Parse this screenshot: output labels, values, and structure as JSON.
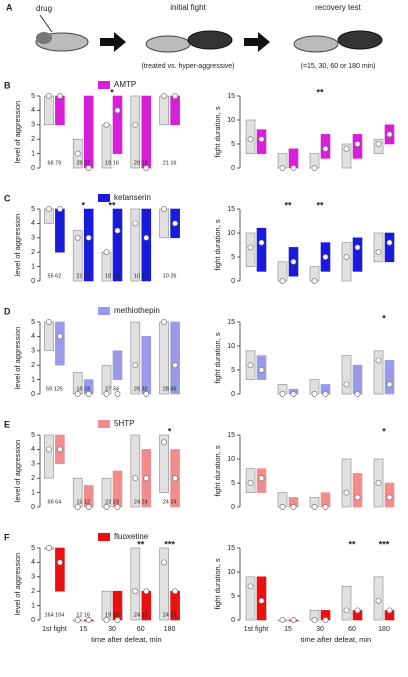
{
  "panel_a": {
    "label": "A",
    "drug": "drug",
    "initial_fight": "initial fight",
    "initial_note": "(treated vs. hyper-aggressive)",
    "recovery": "recovery test",
    "recovery_note": "(=15, 30, 60 or 180 min)"
  },
  "chart_data": [
    {
      "type": "range",
      "panel": "B",
      "ylabel": "level of aggression",
      "ylim": [
        0,
        5
      ],
      "yticks": [
        0,
        1,
        2,
        3,
        4,
        5
      ],
      "series": [
        {
          "color": "#e0e0e0",
          "low": [
            3,
            0,
            0,
            0,
            3
          ],
          "high": [
            5,
            2,
            3,
            5,
            5
          ],
          "median": [
            5,
            1,
            3,
            3,
            5
          ]
        },
        {
          "name": "AMTP",
          "color": "#d81fd8",
          "low": [
            3,
            0,
            1,
            0,
            3
          ],
          "high": [
            5,
            5,
            5,
            5,
            5
          ],
          "median": [
            5,
            0,
            4,
            0,
            5
          ]
        }
      ],
      "n_labels": [
        "68 79",
        "28 22",
        "19 16",
        "20 16",
        "21 16"
      ],
      "annotations": [
        null,
        null,
        "*",
        null,
        null
      ]
    },
    {
      "type": "range",
      "ylabel": "fight duration, s",
      "ylim": [
        0,
        15
      ],
      "yticks": [
        0,
        5,
        10,
        15
      ],
      "series": [
        {
          "color": "#e0e0e0",
          "low": [
            3,
            0,
            0,
            0,
            3
          ],
          "high": [
            10,
            3,
            3,
            5,
            6
          ],
          "median": [
            6,
            0,
            0,
            4,
            5
          ]
        },
        {
          "color": "#d81fd8",
          "low": [
            3,
            0,
            2,
            2,
            5
          ],
          "high": [
            8,
            4,
            7,
            7,
            9
          ],
          "median": [
            6,
            0,
            4,
            5,
            7
          ]
        }
      ],
      "annotations": [
        null,
        null,
        "**",
        null,
        null
      ]
    },
    {
      "type": "range",
      "panel": "C",
      "ylabel": "level of aggression",
      "ylim": [
        0,
        5
      ],
      "yticks": [
        0,
        1,
        2,
        3,
        4,
        5
      ],
      "series": [
        {
          "color": "#e0e0e0",
          "low": [
            4,
            0,
            0,
            0,
            3
          ],
          "high": [
            5,
            3.5,
            2,
            5,
            5
          ],
          "median": [
            5,
            3,
            2,
            4,
            5
          ]
        },
        {
          "name": "ketanserin",
          "color": "#1a1adb",
          "low": [
            2,
            0,
            0,
            0,
            3
          ],
          "high": [
            5,
            5,
            5,
            5,
            5
          ],
          "median": [
            5,
            3,
            3.5,
            3,
            4
          ]
        }
      ],
      "n_labels": [
        "55 62",
        "21 27",
        "18 28",
        "10 21",
        "10 26"
      ],
      "annotations": [
        null,
        "*",
        "**",
        null,
        null
      ]
    },
    {
      "type": "range",
      "ylabel": "fight duration, s",
      "ylim": [
        0,
        15
      ],
      "yticks": [
        0,
        5,
        10,
        15
      ],
      "series": [
        {
          "color": "#e0e0e0",
          "low": [
            3,
            0,
            0,
            0,
            4
          ],
          "high": [
            10,
            4,
            3,
            8,
            10
          ],
          "median": [
            7,
            0,
            0,
            5,
            6
          ]
        },
        {
          "color": "#1a1adb",
          "low": [
            2,
            1,
            2,
            2,
            4
          ],
          "high": [
            11,
            7,
            8,
            9,
            10
          ],
          "median": [
            8,
            4,
            5,
            7,
            8
          ]
        }
      ],
      "annotations": [
        null,
        "**",
        "**",
        null,
        null
      ]
    },
    {
      "type": "range",
      "panel": "D",
      "ylabel": "level of aggression",
      "ylim": [
        0,
        5
      ],
      "yticks": [
        0,
        1,
        2,
        3,
        4,
        5
      ],
      "series": [
        {
          "color": "#e0e0e0",
          "low": [
            3,
            0,
            0,
            0,
            0
          ],
          "high": [
            5,
            1.5,
            2,
            5,
            5
          ],
          "median": [
            5,
            0,
            0,
            2,
            5
          ]
        },
        {
          "name": "methiothepin",
          "color": "#9a9ae8",
          "low": [
            2,
            0,
            1,
            0,
            0
          ],
          "high": [
            5,
            1,
            3,
            4,
            5
          ],
          "median": [
            4,
            0,
            0,
            0,
            2
          ]
        }
      ],
      "n_labels": [
        "59 125",
        "18 24",
        "27 34",
        "26 32",
        "28 35"
      ],
      "annotations": [
        null,
        null,
        null,
        null,
        null
      ]
    },
    {
      "type": "range",
      "ylabel": "fight duration, s",
      "ylim": [
        0,
        15
      ],
      "yticks": [
        0,
        5,
        10,
        15
      ],
      "series": [
        {
          "color": "#e0e0e0",
          "low": [
            3,
            0,
            0,
            0,
            0
          ],
          "high": [
            9,
            2,
            3,
            8,
            9
          ],
          "median": [
            6,
            0,
            0,
            2,
            7
          ]
        },
        {
          "color": "#9a9ae8",
          "low": [
            3,
            0,
            0,
            0,
            0
          ],
          "high": [
            8,
            1,
            2,
            6,
            7
          ],
          "median": [
            5,
            0,
            0,
            0,
            2
          ]
        }
      ],
      "annotations": [
        null,
        null,
        null,
        null,
        "*"
      ]
    },
    {
      "type": "range",
      "panel": "E",
      "ylabel": "level of aggression",
      "ylim": [
        0,
        5
      ],
      "yticks": [
        0,
        1,
        2,
        3,
        4,
        5
      ],
      "series": [
        {
          "color": "#e0e0e0",
          "low": [
            2,
            0,
            0,
            0,
            1
          ],
          "high": [
            5,
            2,
            2,
            5,
            5
          ],
          "median": [
            4,
            0,
            0,
            2,
            4.5
          ]
        },
        {
          "name": "5HTP",
          "color": "#f08c8c",
          "low": [
            3,
            0,
            0,
            0,
            0
          ],
          "high": [
            5,
            1.5,
            2.5,
            4,
            4
          ],
          "median": [
            4,
            0,
            0,
            2,
            2
          ]
        }
      ],
      "n_labels": [
        "66 64",
        "15 12",
        "23 23",
        "24 24",
        "24 24"
      ],
      "annotations": [
        null,
        null,
        null,
        null,
        "*"
      ]
    },
    {
      "type": "range",
      "ylabel": "fight duration, s",
      "ylim": [
        0,
        15
      ],
      "yticks": [
        0,
        5,
        10,
        15
      ],
      "series": [
        {
          "color": "#e0e0e0",
          "low": [
            3,
            0,
            0,
            0,
            0
          ],
          "high": [
            8,
            3,
            2,
            10,
            10
          ],
          "median": [
            5,
            0,
            0,
            3,
            5
          ]
        },
        {
          "color": "#f08c8c",
          "low": [
            3,
            0,
            0,
            0,
            0
          ],
          "high": [
            8,
            2,
            3,
            7,
            5
          ],
          "median": [
            6,
            0,
            0,
            2,
            2
          ]
        }
      ],
      "annotations": [
        null,
        null,
        null,
        null,
        "*"
      ]
    },
    {
      "type": "range",
      "panel": "F",
      "ylabel": "level of aggression",
      "ylim": [
        0,
        5
      ],
      "yticks": [
        0,
        1,
        2,
        3,
        4,
        5
      ],
      "categories": [
        "1st fight",
        "15",
        "30",
        "60",
        "180"
      ],
      "xlabel": "time after defeat, min",
      "series": [
        {
          "color": "#e0e0e0",
          "low": [
            5,
            0,
            0,
            0,
            0
          ],
          "high": [
            5,
            0,
            2,
            5,
            5
          ],
          "median": [
            5,
            0,
            0,
            2,
            4
          ]
        },
        {
          "name": "fluoxetine",
          "color": "#e81010",
          "low": [
            2,
            0,
            0,
            0,
            0
          ],
          "high": [
            5,
            0,
            2,
            2,
            2
          ],
          "median": [
            4,
            0,
            0,
            2,
            2
          ]
        }
      ],
      "n_labels": [
        "164 104",
        "12 16",
        "19 19",
        "24 21",
        "24 21"
      ],
      "annotations": [
        null,
        null,
        null,
        "**",
        "***"
      ]
    },
    {
      "type": "range",
      "ylabel": "fight duration, s",
      "ylim": [
        0,
        15
      ],
      "yticks": [
        0,
        5,
        10,
        15
      ],
      "categories": [
        "1st fight",
        "15",
        "30",
        "60",
        "180"
      ],
      "xlabel": "time after defeat, min",
      "series": [
        {
          "color": "#e0e0e0",
          "low": [
            0,
            0,
            0,
            0,
            0
          ],
          "high": [
            9,
            0,
            2,
            7,
            9
          ],
          "median": [
            7,
            0,
            0,
            2,
            4
          ]
        },
        {
          "color": "#e81010",
          "low": [
            0,
            0,
            0,
            0,
            0
          ],
          "high": [
            9,
            0,
            2,
            2,
            2
          ],
          "median": [
            4,
            0,
            0,
            2,
            2
          ]
        }
      ],
      "annotations": [
        null,
        null,
        null,
        "**",
        "***"
      ]
    }
  ]
}
